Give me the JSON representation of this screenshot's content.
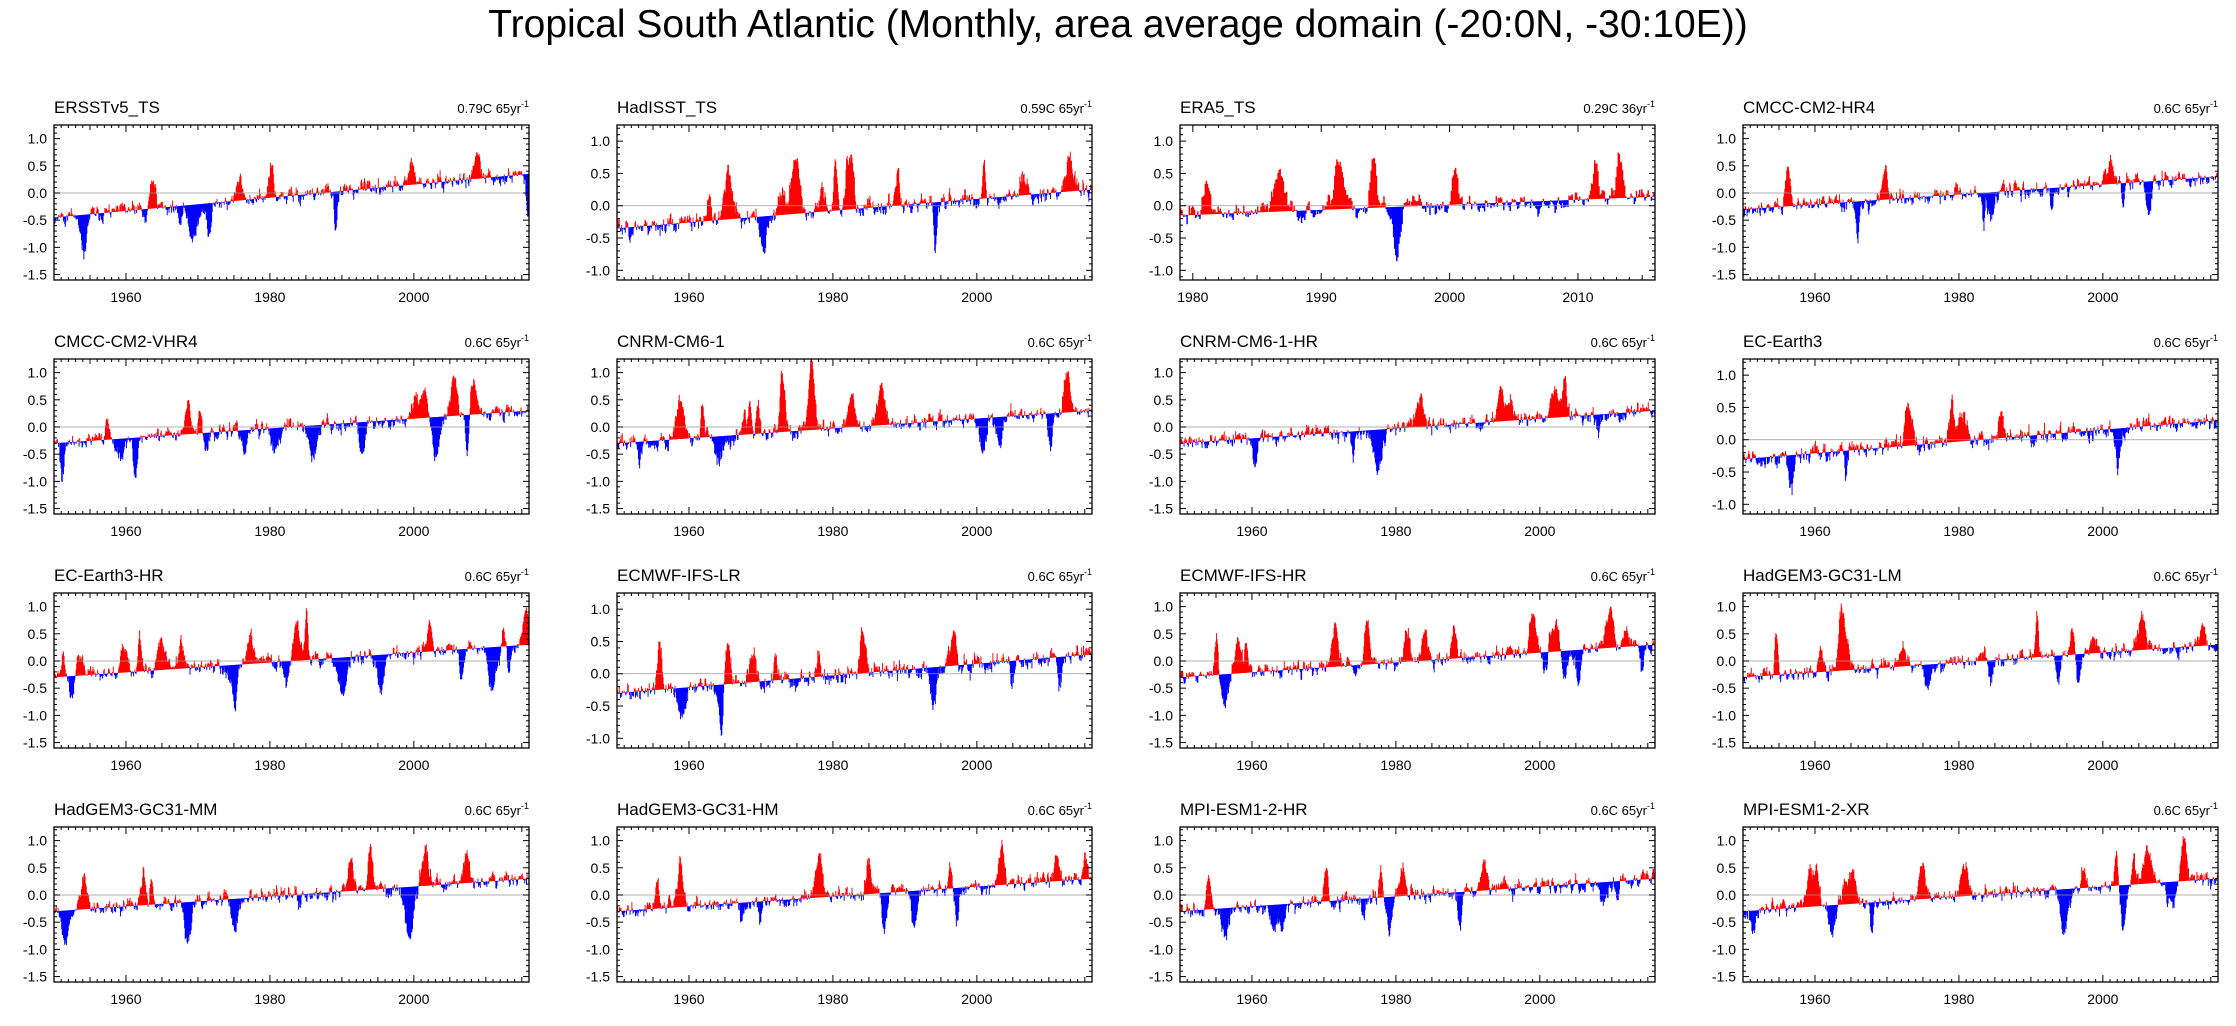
{
  "title": "Tropical South Atlantic (Monthly, area average domain (-20:0N, -30:10E))",
  "colors": {
    "positive": "#ff0000",
    "negative": "#0000ff",
    "zero_line": "#999999",
    "axis": "#000000"
  },
  "chart_data": [
    {
      "type": "bar",
      "name": "ERSSTv5_TS",
      "trend": "0.79C 65yr",
      "trend_exp": "-1",
      "x_start": 1950,
      "x_end": 2015,
      "x_ticks": [
        1960,
        1980,
        2000
      ],
      "ylim": [
        -1.6,
        1.25
      ],
      "y_ticks": [
        -1.5,
        -1.0,
        -0.5,
        0.0,
        0.5,
        1.0
      ],
      "y_tick_labels": [
        "-1.5",
        "-1.0",
        "-0.5",
        "0.0",
        "0.5",
        "1.0"
      ],
      "trend_start": -0.45,
      "trend_end": 0.35,
      "seed": 11
    },
    {
      "type": "bar",
      "name": "HadISST_TS",
      "trend": "0.59C 65yr",
      "trend_exp": "-1",
      "x_start": 1950,
      "x_end": 2015,
      "x_ticks": [
        1960,
        1980,
        2000
      ],
      "ylim": [
        -1.15,
        1.25
      ],
      "y_ticks": [
        -1.0,
        -0.5,
        0.0,
        0.5,
        1.0
      ],
      "y_tick_labels": [
        "-1.0",
        "-0.5",
        "0.0",
        "0.5",
        "1.0"
      ],
      "trend_start": -0.35,
      "trend_end": 0.25,
      "seed": 23
    },
    {
      "type": "bar",
      "name": "ERA5_TS",
      "trend": "0.29C 36yr",
      "trend_exp": "-1",
      "x_start": 1979,
      "x_end": 2015,
      "x_ticks": [
        1980,
        1990,
        2000,
        2010
      ],
      "ylim": [
        -1.15,
        1.25
      ],
      "y_ticks": [
        -1.0,
        -0.5,
        0.0,
        0.5,
        1.0
      ],
      "y_tick_labels": [
        "-1.0",
        "-0.5",
        "0.0",
        "0.5",
        "1.0"
      ],
      "trend_start": -0.15,
      "trend_end": 0.14,
      "seed": 37
    },
    {
      "type": "bar",
      "name": "CMCC-CM2-HR4",
      "trend": "0.6C 65yr",
      "trend_exp": "-1",
      "x_start": 1950,
      "x_end": 2015,
      "x_ticks": [
        1960,
        1980,
        2000
      ],
      "ylim": [
        -1.6,
        1.25
      ],
      "y_ticks": [
        -1.5,
        -1.0,
        -0.5,
        0.0,
        0.5,
        1.0
      ],
      "y_tick_labels": [
        "-1.5",
        "-1.0",
        "-0.5",
        "0.0",
        "0.5",
        "1.0"
      ],
      "trend_start": -0.3,
      "trend_end": 0.3,
      "seed": 41
    },
    {
      "type": "bar",
      "name": "CMCC-CM2-VHR4",
      "trend": "0.6C 65yr",
      "trend_exp": "-1",
      "x_start": 1950,
      "x_end": 2015,
      "x_ticks": [
        1960,
        1980,
        2000
      ],
      "ylim": [
        -1.6,
        1.25
      ],
      "y_ticks": [
        -1.5,
        -1.0,
        -0.5,
        0.0,
        0.5,
        1.0
      ],
      "y_tick_labels": [
        "-1.5",
        "-1.0",
        "-0.5",
        "0.0",
        "0.5",
        "1.0"
      ],
      "trend_start": -0.3,
      "trend_end": 0.3,
      "seed": 53
    },
    {
      "type": "bar",
      "name": "CNRM-CM6-1",
      "trend": "0.6C 65yr",
      "trend_exp": "-1",
      "x_start": 1950,
      "x_end": 2015,
      "x_ticks": [
        1960,
        1980,
        2000
      ],
      "ylim": [
        -1.6,
        1.25
      ],
      "y_ticks": [
        -1.5,
        -1.0,
        -0.5,
        0.0,
        0.5,
        1.0
      ],
      "y_tick_labels": [
        "-1.5",
        "-1.0",
        "-0.5",
        "0.0",
        "0.5",
        "1.0"
      ],
      "trend_start": -0.3,
      "trend_end": 0.3,
      "seed": 67
    },
    {
      "type": "bar",
      "name": "CNRM-CM6-1-HR",
      "trend": "0.6C 65yr",
      "trend_exp": "-1",
      "x_start": 1950,
      "x_end": 2015,
      "x_ticks": [
        1960,
        1980,
        2000
      ],
      "ylim": [
        -1.6,
        1.25
      ],
      "y_ticks": [
        -1.5,
        -1.0,
        -0.5,
        0.0,
        0.5,
        1.0
      ],
      "y_tick_labels": [
        "-1.5",
        "-1.0",
        "-0.5",
        "0.0",
        "0.5",
        "1.0"
      ],
      "trend_start": -0.3,
      "trend_end": 0.3,
      "seed": 71
    },
    {
      "type": "bar",
      "name": "EC-Earth3",
      "trend": "0.6C 65yr",
      "trend_exp": "-1",
      "x_start": 1950,
      "x_end": 2015,
      "x_ticks": [
        1960,
        1980,
        2000
      ],
      "ylim": [
        -1.15,
        1.25
      ],
      "y_ticks": [
        -1.0,
        -0.5,
        0.0,
        0.5,
        1.0
      ],
      "y_tick_labels": [
        "-1.0",
        "-0.5",
        "0.0",
        "0.5",
        "1.0"
      ],
      "trend_start": -0.3,
      "trend_end": 0.3,
      "seed": 83
    },
    {
      "type": "bar",
      "name": "EC-Earth3-HR",
      "trend": "0.6C 65yr",
      "trend_exp": "-1",
      "x_start": 1950,
      "x_end": 2015,
      "x_ticks": [
        1960,
        1980,
        2000
      ],
      "ylim": [
        -1.6,
        1.25
      ],
      "y_ticks": [
        -1.5,
        -1.0,
        -0.5,
        0.0,
        0.5,
        1.0
      ],
      "y_tick_labels": [
        "-1.5",
        "-1.0",
        "-0.5",
        "0.0",
        "0.5",
        "1.0"
      ],
      "trend_start": -0.3,
      "trend_end": 0.3,
      "seed": 97
    },
    {
      "type": "bar",
      "name": "ECMWF-IFS-LR",
      "trend": "0.6C 65yr",
      "trend_exp": "-1",
      "x_start": 1950,
      "x_end": 2015,
      "x_ticks": [
        1960,
        1980,
        2000
      ],
      "ylim": [
        -1.15,
        1.25
      ],
      "y_ticks": [
        -1.0,
        -0.5,
        0.0,
        0.5,
        1.0
      ],
      "y_tick_labels": [
        "-1.0",
        "-0.5",
        "0.0",
        "0.5",
        "1.0"
      ],
      "trend_start": -0.3,
      "trend_end": 0.3,
      "seed": 101
    },
    {
      "type": "bar",
      "name": "ECMWF-IFS-HR",
      "trend": "0.6C 65yr",
      "trend_exp": "-1",
      "x_start": 1950,
      "x_end": 2015,
      "x_ticks": [
        1960,
        1980,
        2000
      ],
      "ylim": [
        -1.6,
        1.25
      ],
      "y_ticks": [
        -1.5,
        -1.0,
        -0.5,
        0.0,
        0.5,
        1.0
      ],
      "y_tick_labels": [
        "-1.5",
        "-1.0",
        "-0.5",
        "0.0",
        "0.5",
        "1.0"
      ],
      "trend_start": -0.3,
      "trend_end": 0.3,
      "seed": 113
    },
    {
      "type": "bar",
      "name": "HadGEM3-GC31-LM",
      "trend": "0.6C 65yr",
      "trend_exp": "-1",
      "x_start": 1950,
      "x_end": 2015,
      "x_ticks": [
        1960,
        1980,
        2000
      ],
      "ylim": [
        -1.6,
        1.25
      ],
      "y_ticks": [
        -1.5,
        -1.0,
        -0.5,
        0.0,
        0.5,
        1.0
      ],
      "y_tick_labels": [
        "-1.5",
        "-1.0",
        "-0.5",
        "0.0",
        "0.5",
        "1.0"
      ],
      "trend_start": -0.3,
      "trend_end": 0.3,
      "seed": 127
    },
    {
      "type": "bar",
      "name": "HadGEM3-GC31-MM",
      "trend": "0.6C 65yr",
      "trend_exp": "-1",
      "x_start": 1950,
      "x_end": 2015,
      "x_ticks": [
        1960,
        1980,
        2000
      ],
      "ylim": [
        -1.6,
        1.25
      ],
      "y_ticks": [
        -1.5,
        -1.0,
        -0.5,
        0.0,
        0.5,
        1.0
      ],
      "y_tick_labels": [
        "-1.5",
        "-1.0",
        "-0.5",
        "0.0",
        "0.5",
        "1.0"
      ],
      "trend_start": -0.3,
      "trend_end": 0.3,
      "seed": 131
    },
    {
      "type": "bar",
      "name": "HadGEM3-GC31-HM",
      "trend": "0.6C 65yr",
      "trend_exp": "-1",
      "x_start": 1950,
      "x_end": 2015,
      "x_ticks": [
        1960,
        1980,
        2000
      ],
      "ylim": [
        -1.6,
        1.25
      ],
      "y_ticks": [
        -1.5,
        -1.0,
        -0.5,
        0.0,
        0.5,
        1.0
      ],
      "y_tick_labels": [
        "-1.5",
        "-1.0",
        "-0.5",
        "0.0",
        "0.5",
        "1.0"
      ],
      "trend_start": -0.3,
      "trend_end": 0.3,
      "seed": 149
    },
    {
      "type": "bar",
      "name": "MPI-ESM1-2-HR",
      "trend": "0.6C 65yr",
      "trend_exp": "-1",
      "x_start": 1950,
      "x_end": 2015,
      "x_ticks": [
        1960,
        1980,
        2000
      ],
      "ylim": [
        -1.6,
        1.25
      ],
      "y_ticks": [
        -1.5,
        -1.0,
        -0.5,
        0.0,
        0.5,
        1.0
      ],
      "y_tick_labels": [
        "-1.5",
        "-1.0",
        "-0.5",
        "0.0",
        "0.5",
        "1.0"
      ],
      "trend_start": -0.3,
      "trend_end": 0.3,
      "seed": 157
    },
    {
      "type": "bar",
      "name": "MPI-ESM1-2-XR",
      "trend": "0.6C 65yr",
      "trend_exp": "-1",
      "x_start": 1950,
      "x_end": 2015,
      "x_ticks": [
        1960,
        1980,
        2000
      ],
      "ylim": [
        -1.6,
        1.25
      ],
      "y_ticks": [
        -1.5,
        -1.0,
        -0.5,
        0.0,
        0.5,
        1.0
      ],
      "y_tick_labels": [
        "-1.5",
        "-1.0",
        "-0.5",
        "0.0",
        "0.5",
        "1.0"
      ],
      "trend_start": -0.3,
      "trend_end": 0.3,
      "seed": 163
    }
  ]
}
